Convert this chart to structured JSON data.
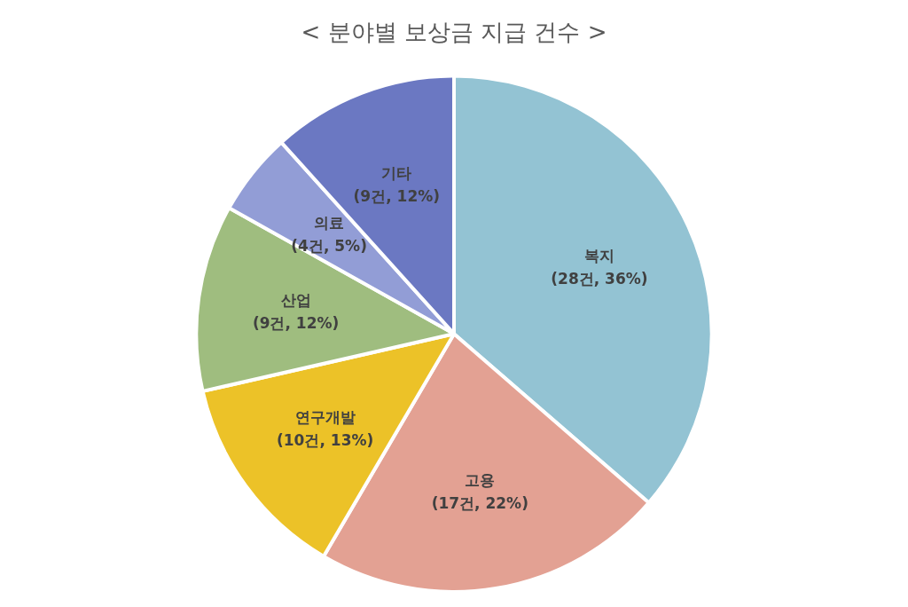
{
  "chart_data": {
    "type": "pie",
    "title": "< 분야별 보상금 지급 건수 >",
    "categories": [
      "복지",
      "고용",
      "연구개발",
      "산업",
      "의료",
      "기타"
    ],
    "values": [
      28,
      17,
      10,
      9,
      4,
      9
    ],
    "value_labels": [
      "(28건, 36%)",
      "(17건, 22%)",
      "(10건, 13%)",
      "(9건, 12%)",
      "(4건, 5%)",
      "(9건, 12%)"
    ],
    "colors": [
      "#93c3d3",
      "#e3a193",
      "#ecc228",
      "#9fbd7f",
      "#929dd6",
      "#6b78c2"
    ],
    "legend": false
  }
}
